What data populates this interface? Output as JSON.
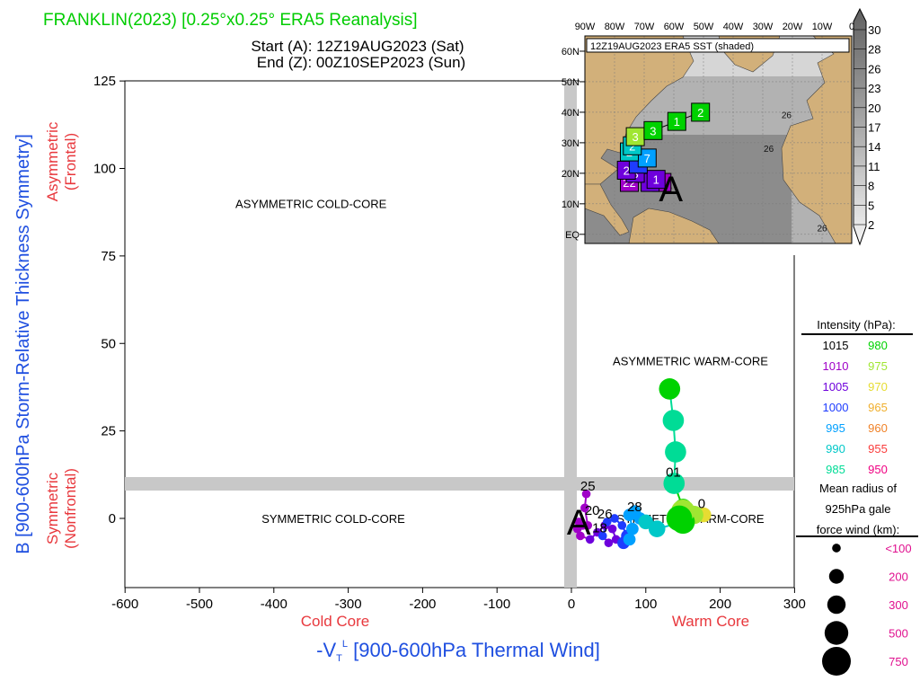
{
  "header": {
    "title": "FRANKLIN(2023) [0.25°x0.25° ERA5 Reanalysis]",
    "start_line": "Start (A): 12Z19AUG2023 (Sat)",
    "end_line": "End (Z): 00Z10SEP2023 (Sun)"
  },
  "colors": {
    "title": "#00cc00",
    "axis_label_blue": "#1f4fe0",
    "axis_label_red": "#e8383d",
    "band_gray": "#c8c8c8",
    "land": "#d2b07a",
    "ocean": "#b4b4b4",
    "magenta": "#e0108f"
  },
  "chart_data": [
    {
      "type": "scatter",
      "title": "",
      "xlabel": "-V_T^L [900-600hPa Thermal Wind]",
      "xlabel_parts": {
        "pre": "-V",
        "sub": "T",
        "sup": "L",
        "post": " [900-600hPa Thermal Wind]"
      },
      "ylabel": "B [900-600hPa Storm-Relative Thickness Symmetry]",
      "xlim": [
        -600,
        300
      ],
      "ylim": [
        -20,
        125
      ],
      "x_ticks": [
        -600,
        -500,
        -400,
        -300,
        -200,
        -100,
        0,
        100,
        200,
        300
      ],
      "x_tick_labels": [
        "-600",
        "-500",
        "-400",
        "-300",
        "-200",
        "-100",
        "0",
        "100",
        "200",
        "300"
      ],
      "y_ticks": [
        0,
        25,
        50,
        75,
        100,
        125
      ],
      "y_tick_labels": [
        "0",
        "25",
        "50",
        "75",
        "100",
        "125"
      ],
      "x_side_labels": {
        "left": "Cold Core",
        "right": "Warm Core"
      },
      "y_side_labels": {
        "top": [
          "Asymmetric",
          "(Frontal)"
        ],
        "bottom": [
          "Symmetric",
          "(Nonfrontal)"
        ]
      },
      "quadrant_labels": [
        {
          "text": "ASYMMETRIC COLD-CORE",
          "x": -350,
          "y": 90
        },
        {
          "text": "SYMMETRIC COLD-CORE",
          "x": -320,
          "y": 0
        },
        {
          "text": "ASYMMETRIC WARM-CORE",
          "x": 160,
          "y": 45
        },
        {
          "text": "SYMMETRIC WARM-CORE",
          "x": 160,
          "y": 0
        }
      ],
      "grid": false,
      "points": [
        {
          "x": 20,
          "y": 7,
          "p": 1008,
          "r": 100
        },
        {
          "x": 18,
          "y": 3,
          "p": 1008,
          "r": 100
        },
        {
          "x": 22,
          "y": -2,
          "p": 1008,
          "r": 100
        },
        {
          "x": 15,
          "y": -2,
          "p": 1008,
          "r": 100
        },
        {
          "x": 10,
          "y": -1,
          "p": 1008,
          "r": 100
        },
        {
          "x": 8,
          "y": -3,
          "p": 1008,
          "r": 100
        },
        {
          "x": 12,
          "y": -5,
          "p": 1008,
          "r": 100
        },
        {
          "x": 25,
          "y": -6,
          "p": 1007,
          "r": 100
        },
        {
          "x": 35,
          "y": -4,
          "p": 1006,
          "r": 100
        },
        {
          "x": 45,
          "y": -2,
          "p": 1005,
          "r": 100
        },
        {
          "x": 55,
          "y": -3,
          "p": 1004,
          "r": 100
        },
        {
          "x": 60,
          "y": -6,
          "p": 1003,
          "r": 100
        },
        {
          "x": 50,
          "y": -7,
          "p": 1003,
          "r": 100
        },
        {
          "x": 42,
          "y": -5,
          "p": 1002,
          "r": 100
        },
        {
          "x": 48,
          "y": -1,
          "p": 1002,
          "r": 100
        },
        {
          "x": 58,
          "y": 0,
          "p": 1001,
          "r": 100
        },
        {
          "x": 68,
          "y": -2,
          "p": 1000,
          "r": 100
        },
        {
          "x": 75,
          "y": -5,
          "p": 999,
          "r": 150
        },
        {
          "x": 70,
          "y": -7,
          "p": 998,
          "r": 150
        },
        {
          "x": 78,
          "y": -6,
          "p": 997,
          "r": 150
        },
        {
          "x": 82,
          "y": -3,
          "p": 996,
          "r": 150
        },
        {
          "x": 78,
          "y": 1,
          "p": 995,
          "r": 150
        },
        {
          "x": 85,
          "y": 2,
          "p": 994,
          "r": 150
        },
        {
          "x": 92,
          "y": 0,
          "p": 993,
          "r": 150
        },
        {
          "x": 100,
          "y": -1,
          "p": 992,
          "r": 200
        },
        {
          "x": 115,
          "y": -3,
          "p": 990,
          "r": 250
        },
        {
          "x": 150,
          "y": -1,
          "p": 982,
          "r": 500
        },
        {
          "x": 145,
          "y": 0,
          "p": 979,
          "r": 600
        },
        {
          "x": 150,
          "y": 2,
          "p": 976,
          "r": 500
        },
        {
          "x": 165,
          "y": 1,
          "p": 974,
          "r": 300
        },
        {
          "x": 178,
          "y": 1,
          "p": 970,
          "r": 200
        },
        {
          "x": 150,
          "y": 3,
          "p": 982,
          "r": 300
        },
        {
          "x": 138,
          "y": 10,
          "p": 986,
          "r": 400
        },
        {
          "x": 140,
          "y": 19,
          "p": 987,
          "r": 400
        },
        {
          "x": 137,
          "y": 28,
          "p": 986,
          "r": 400
        },
        {
          "x": 132,
          "y": 37,
          "p": 982,
          "r": 400
        }
      ],
      "track_points_approx": true,
      "point_labels": [
        {
          "text": "25",
          "x": 22,
          "y": 8
        },
        {
          "text": "20",
          "x": 28,
          "y": 1
        },
        {
          "text": "26",
          "x": 45,
          "y": 0
        },
        {
          "text": "28",
          "x": 85,
          "y": 2
        },
        {
          "text": "01",
          "x": 137,
          "y": 12
        },
        {
          "text": "0",
          "x": 175,
          "y": 3
        },
        {
          "text": "18",
          "x": 38,
          "y": -4
        }
      ],
      "start_marker": {
        "text": "A",
        "x": 10,
        "y": -1
      }
    },
    {
      "type": "map",
      "title": "12Z19AUG2023 ERA5 SST (shaded)",
      "lon_labels": [
        "90W",
        "80W",
        "70W",
        "60W",
        "50W",
        "40W",
        "30W",
        "20W",
        "10W",
        "0"
      ],
      "lat_labels": [
        "60N",
        "50N",
        "40N",
        "30N",
        "20N",
        "10N",
        "EQ"
      ],
      "lon_range": [
        -90,
        0
      ],
      "lat_range": [
        -3,
        65
      ],
      "sst_contour_labels": [
        {
          "text": "26",
          "lon": -22,
          "lat": 38
        },
        {
          "text": "26",
          "lon": -28,
          "lat": 27
        },
        {
          "text": "26",
          "lon": -10,
          "lat": 1
        }
      ],
      "colorbar_ticks": [
        "30",
        "28",
        "26",
        "23",
        "20",
        "17",
        "14",
        "11",
        "8",
        "5",
        "2"
      ],
      "track_boxes": [
        {
          "text": "2",
          "lon": -51,
          "lat": 40,
          "p": 980
        },
        {
          "text": "1",
          "lon": -59,
          "lat": 37,
          "p": 982
        },
        {
          "text": "3",
          "lon": -67,
          "lat": 34,
          "p": 978
        },
        {
          "text": "3",
          "lon": -73,
          "lat": 32,
          "p": 975
        },
        {
          "text": "2",
          "lon": -74,
          "lat": 29,
          "p": 990
        },
        {
          "text": "2",
          "lon": -75,
          "lat": 27,
          "p": 988
        },
        {
          "text": "7",
          "lon": -69,
          "lat": 25,
          "p": 996
        },
        {
          "text": "",
          "lon": -72,
          "lat": 23,
          "p": 1000
        },
        {
          "text": "2",
          "lon": -76,
          "lat": 21,
          "p": 1004
        },
        {
          "text": "3",
          "lon": -73,
          "lat": 20,
          "p": 1007
        },
        {
          "text": "1",
          "lon": -66,
          "lat": 18,
          "p": 1006
        },
        {
          "text": "22",
          "lon": -75,
          "lat": 17,
          "p": 1008
        },
        {
          "text": "2",
          "lon": -68,
          "lat": 17,
          "p": 1006
        },
        {
          "text": "0",
          "lon": -64,
          "lat": 17,
          "p": 1008
        }
      ],
      "start_marker": {
        "text": "A",
        "lon": -61,
        "lat": 15
      }
    }
  ],
  "legend": {
    "intensity_title": "Intensity (hPa):",
    "intensity": [
      {
        "label": "1015",
        "color": "#000000"
      },
      {
        "label": "980",
        "color": "#00d200"
      },
      {
        "label": "1010",
        "color": "#a000c8"
      },
      {
        "label": "975",
        "color": "#a0e632"
      },
      {
        "label": "1005",
        "color": "#6e00dc"
      },
      {
        "label": "970",
        "color": "#e6dc32"
      },
      {
        "label": "1000",
        "color": "#1e3cff"
      },
      {
        "label": "965",
        "color": "#f0af2d"
      },
      {
        "label": "995",
        "color": "#00a0ff"
      },
      {
        "label": "960",
        "color": "#f08228"
      },
      {
        "label": "990",
        "color": "#00c8c8"
      },
      {
        "label": "955",
        "color": "#fa3c3c"
      },
      {
        "label": "985",
        "color": "#00dc96"
      },
      {
        "label": "950",
        "color": "#f00082"
      }
    ],
    "radius_title": [
      "Mean radius of",
      "925hPa gale",
      "force wind (km):"
    ],
    "radius": [
      {
        "label": "<100",
        "km": 100
      },
      {
        "label": "200",
        "km": 200
      },
      {
        "label": "300",
        "km": 300
      },
      {
        "label": "500",
        "km": 500
      },
      {
        "label": "750",
        "km": 750
      }
    ]
  }
}
